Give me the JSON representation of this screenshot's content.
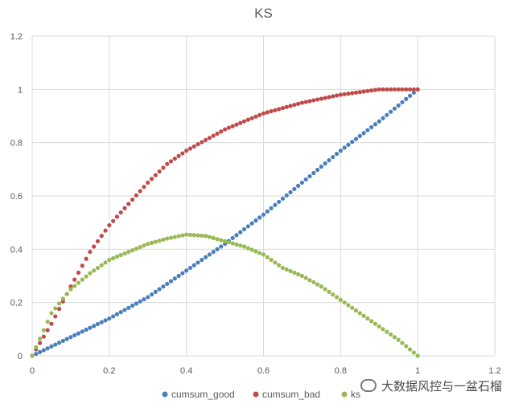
{
  "chart_data": {
    "type": "scatter",
    "title": "KS",
    "xlabel": "",
    "ylabel": "",
    "xlim": [
      0,
      1.2
    ],
    "ylim": [
      0,
      1.2
    ],
    "x_ticks": [
      "0",
      "0.2",
      "0.4",
      "0.6",
      "0.8",
      "1",
      "1.2"
    ],
    "y_ticks": [
      "0",
      "0.2",
      "0.4",
      "0.6",
      "0.8",
      "1",
      "1.2"
    ],
    "grid": "vertical and horizontal major gridlines",
    "legend_position": "bottom",
    "series": [
      {
        "name": "cumsum_good",
        "color": "#4a7ebb",
        "points": [
          [
            0,
            0
          ],
          [
            0.1,
            0.07
          ],
          [
            0.2,
            0.14
          ],
          [
            0.3,
            0.22
          ],
          [
            0.4,
            0.32
          ],
          [
            0.5,
            0.42
          ],
          [
            0.6,
            0.53
          ],
          [
            0.7,
            0.65
          ],
          [
            0.8,
            0.77
          ],
          [
            0.9,
            0.88
          ],
          [
            1.0,
            1.0
          ]
        ]
      },
      {
        "name": "cumsum_bad",
        "color": "#be4b48",
        "points": [
          [
            0,
            0
          ],
          [
            0.05,
            0.12
          ],
          [
            0.1,
            0.26
          ],
          [
            0.15,
            0.39
          ],
          [
            0.2,
            0.49
          ],
          [
            0.25,
            0.57
          ],
          [
            0.3,
            0.65
          ],
          [
            0.35,
            0.72
          ],
          [
            0.4,
            0.77
          ],
          [
            0.5,
            0.85
          ],
          [
            0.6,
            0.91
          ],
          [
            0.7,
            0.95
          ],
          [
            0.8,
            0.98
          ],
          [
            0.9,
            1.0
          ],
          [
            1.0,
            1.0
          ]
        ]
      },
      {
        "name": "ks",
        "color": "#98b954",
        "points": [
          [
            0,
            0
          ],
          [
            0.05,
            0.16
          ],
          [
            0.1,
            0.25
          ],
          [
            0.15,
            0.31
          ],
          [
            0.2,
            0.36
          ],
          [
            0.25,
            0.39
          ],
          [
            0.3,
            0.42
          ],
          [
            0.35,
            0.44
          ],
          [
            0.4,
            0.455
          ],
          [
            0.45,
            0.45
          ],
          [
            0.5,
            0.43
          ],
          [
            0.55,
            0.41
          ],
          [
            0.6,
            0.38
          ],
          [
            0.65,
            0.33
          ],
          [
            0.7,
            0.3
          ],
          [
            0.75,
            0.26
          ],
          [
            0.8,
            0.21
          ],
          [
            0.85,
            0.16
          ],
          [
            0.9,
            0.11
          ],
          [
            0.95,
            0.06
          ],
          [
            1.0,
            0
          ]
        ]
      }
    ]
  },
  "watermark": {
    "text": "大数据风控与一盆石榴"
  }
}
